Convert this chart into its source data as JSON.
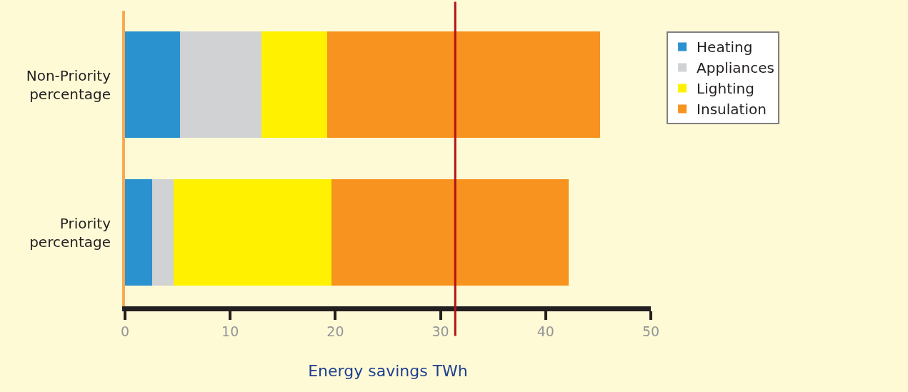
{
  "chart_data": {
    "type": "bar",
    "orientation": "horizontal",
    "stacked": true,
    "xlabel": "Energy savings TWh",
    "categories": [
      "Non-Priority percentage",
      "Priority percentage"
    ],
    "series": [
      {
        "name": "Heating",
        "color": "#2b92d0",
        "values": [
          5.2,
          2.6
        ]
      },
      {
        "name": "Appliances",
        "color": "#d1d2d4",
        "values": [
          7.8,
          2.0
        ]
      },
      {
        "name": "Lighting",
        "color": "#fff100",
        "values": [
          6.2,
          15.0
        ]
      },
      {
        "name": "Insulation",
        "color": "#f7931e",
        "values": [
          26.0,
          22.6
        ]
      }
    ],
    "xlim": [
      0,
      50
    ],
    "xticks": [
      0,
      10,
      20,
      30,
      40,
      50
    ],
    "ref_lines": [
      {
        "axis": "x",
        "value": 31.4,
        "color": "#b01116"
      }
    ],
    "grid": false,
    "legend": "right"
  }
}
